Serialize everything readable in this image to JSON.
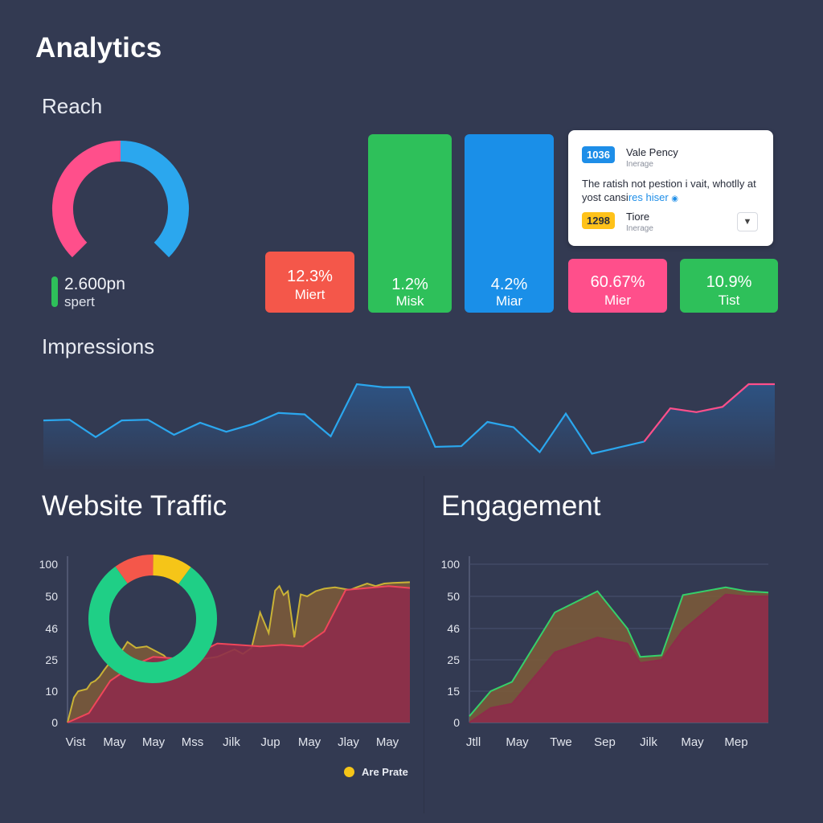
{
  "header": {
    "title": "Analytics"
  },
  "reach": {
    "title": "Reach",
    "value": "2.600pn",
    "sub": "spert",
    "gauge": {
      "left_color": "#ff4f8b",
      "right_color": "#2ba7ee"
    }
  },
  "tiles": [
    {
      "value": "12.3%",
      "label": "Miert",
      "color": "#f4574a"
    },
    {
      "value": "1.2%",
      "label": "Misk",
      "color": "#2ec05a"
    },
    {
      "value": "4.2%",
      "label": "Miar",
      "color": "#1a8fe8"
    },
    {
      "value": "60.67%",
      "label": "Mier",
      "color": "#ff4f8b"
    },
    {
      "value": "10.9%",
      "label": "Tist",
      "color": "#2ec05a"
    }
  ],
  "card": {
    "badge1": "1036",
    "title1": "Vale Pency",
    "sub1": "Inerage",
    "text": "The ratish not pestion i vait, whotlly at yost cansi",
    "link": "res hiser",
    "badge2": "1298",
    "title2": "Tiore",
    "sub2": "Inerage",
    "button_icon": "arrow-down-icon"
  },
  "impressions": {
    "title": "Impressions"
  },
  "traffic": {
    "title": "Website Traffic",
    "legend_label": "Are Prate"
  },
  "engagement": {
    "title": "Engagement"
  },
  "chart_data": [
    {
      "type": "line",
      "name": "impressions",
      "values": [
        52,
        53,
        30,
        52,
        53,
        33,
        49,
        37,
        47,
        62,
        60,
        31,
        100,
        96,
        96,
        17,
        18,
        50,
        43,
        10,
        61,
        8,
        16,
        24,
        68,
        63,
        70,
        100,
        100
      ],
      "colors": {
        "line": "#2ba7ee",
        "accent": "#ff4f8b"
      }
    },
    {
      "type": "area",
      "name": "website-traffic",
      "categories": [
        "Vist",
        "May",
        "May",
        "Mss",
        "Jilk",
        "Jup",
        "May",
        "Jlay",
        "May"
      ],
      "y_ticks": [
        0,
        10,
        25,
        46,
        50,
        100
      ],
      "series": [
        {
          "name": "Are Prate",
          "color": "#c9b236",
          "x": [
            0,
            0.15,
            0.25,
            0.45,
            0.55,
            0.65,
            0.75,
            0.85,
            1.0,
            1.2,
            1.4,
            1.6,
            1.85,
            2.25,
            2.5,
            2.75,
            3.0,
            3.5,
            3.9,
            4.1,
            4.3,
            4.5,
            4.7,
            4.85,
            4.95,
            5.05,
            5.15,
            5.3,
            5.45,
            5.6,
            5.8,
            6.0,
            6.25,
            6.6,
            6.75,
            7.0,
            7.2,
            7.4,
            7.6,
            8.0
          ],
          "values": [
            0,
            8,
            10,
            11,
            14,
            15,
            17,
            20,
            24,
            28,
            37,
            33,
            34,
            28,
            22,
            26,
            25,
            27,
            32,
            29,
            33,
            48,
            43,
            59,
            66,
            52,
            58,
            40,
            53,
            50,
            58,
            62,
            64,
            60,
            64,
            70,
            66,
            70,
            71,
            72
          ]
        },
        {
          "name": "",
          "color": "#f0465a",
          "x": [
            0,
            0.5,
            1.0,
            1.5,
            2.0,
            2.5,
            3.0,
            3.5,
            4.0,
            4.5,
            5.0,
            5.5,
            6.0,
            6.5,
            7.0,
            7.5,
            8.0
          ],
          "values": [
            0,
            3,
            15,
            22,
            27,
            26,
            29,
            36,
            35,
            34,
            35,
            34,
            44,
            60,
            63,
            66,
            63
          ]
        }
      ],
      "donut": [
        {
          "value": 0.1,
          "color": "#f4574a"
        },
        {
          "value": 0.1,
          "color": "#f5c518"
        },
        {
          "value": 0.8,
          "color": "#1fcf86"
        }
      ]
    },
    {
      "type": "area",
      "name": "engagement",
      "categories": [
        "Jtll",
        "May",
        "Twe",
        "Sep",
        "Jilk",
        "May",
        "Mep"
      ],
      "y_ticks": [
        0,
        15,
        25,
        46,
        50,
        100
      ],
      "series": [
        {
          "name": "",
          "color": "#35d06a",
          "x": [
            0,
            0.5,
            1.0,
            2.0,
            3.0,
            3.7,
            4.0,
            4.5,
            5.0,
            6.0,
            6.5,
            7.0
          ],
          "values": [
            3,
            15,
            18,
            48,
            58,
            46,
            27,
            28,
            52,
            64,
            58,
            56
          ]
        },
        {
          "name": "",
          "color": "#8e2c4a",
          "x": [
            0,
            0.5,
            1.0,
            2.0,
            3.0,
            3.7,
            4.0,
            4.5,
            5.0,
            6.0,
            6.5,
            7.0
          ],
          "values": [
            0,
            7,
            9,
            30,
            40,
            36,
            24,
            25,
            45,
            53,
            50,
            50
          ]
        }
      ]
    }
  ]
}
